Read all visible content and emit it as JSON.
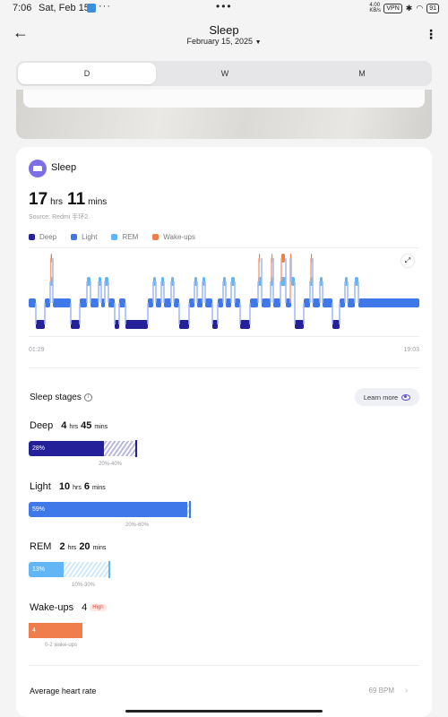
{
  "status_bar": {
    "time": "7:06",
    "date": "Sat, Feb 15",
    "overflow": "···",
    "center_dots": "•••",
    "data_speed": "4.00 KB/s",
    "vpn": "VPN",
    "battery": "91"
  },
  "header": {
    "title": "Sleep",
    "date": "February 15, 2025"
  },
  "tabs": [
    {
      "label": "D",
      "active": true
    },
    {
      "label": "W",
      "active": false
    },
    {
      "label": "M",
      "active": false
    }
  ],
  "summary": {
    "card_title": "Sleep",
    "hours": "17",
    "hours_unit": "hrs",
    "mins": "11",
    "mins_unit": "mins",
    "source": "Source: Redmi 手环2"
  },
  "legend": [
    {
      "label": "Deep",
      "color": "#23209a"
    },
    {
      "label": "Light",
      "color": "#3f78e8"
    },
    {
      "label": "REM",
      "color": "#62b6f5"
    },
    {
      "label": "Wake-ups",
      "color": "#ef7e4c"
    }
  ],
  "chart_data": {
    "type": "line",
    "x_start_label": "01:29",
    "x_end_label": "19:03",
    "stages": [
      "Wake-ups",
      "REM",
      "Light",
      "Deep"
    ]
  },
  "stages_section": {
    "title": "Sleep stages",
    "info_icon": "info-icon",
    "learn_more": "Learn more"
  },
  "stages": [
    {
      "name": "Deep",
      "h": "4",
      "h_unit": "hrs",
      "m": "45",
      "m_unit": "mins",
      "percent": 28,
      "percent_label": "28%",
      "range_label": "20%-40%",
      "range_lo": 20,
      "range_hi": 40,
      "color": "#23209a",
      "pale": "#b9b8df"
    },
    {
      "name": "Light",
      "h": "10",
      "h_unit": "hrs",
      "m": "6",
      "m_unit": "mins",
      "percent": 59,
      "percent_label": "59%",
      "range_label": "20%-60%",
      "range_lo": 20,
      "range_hi": 60,
      "color": "#3f78e8",
      "pale": "#c0d3f8"
    },
    {
      "name": "REM",
      "h": "2",
      "h_unit": "hrs",
      "m": "20",
      "m_unit": "mins",
      "percent": 13,
      "percent_label": "13%",
      "range_label": "10%-30%",
      "range_lo": 10,
      "range_hi": 30,
      "color": "#62b6f5",
      "pale": "#cfe8fc"
    },
    {
      "name": "Wake-ups",
      "count": "4",
      "badge": "High",
      "percent": 20,
      "percent_label": "4",
      "range_label": "0-2 wake-ups",
      "range_lo": 0,
      "range_hi": 20,
      "color": "#ef7e4c",
      "pale": "#f8c9b3"
    }
  ],
  "heart_rate": {
    "label": "Average heart rate",
    "value": "69 BPM"
  }
}
